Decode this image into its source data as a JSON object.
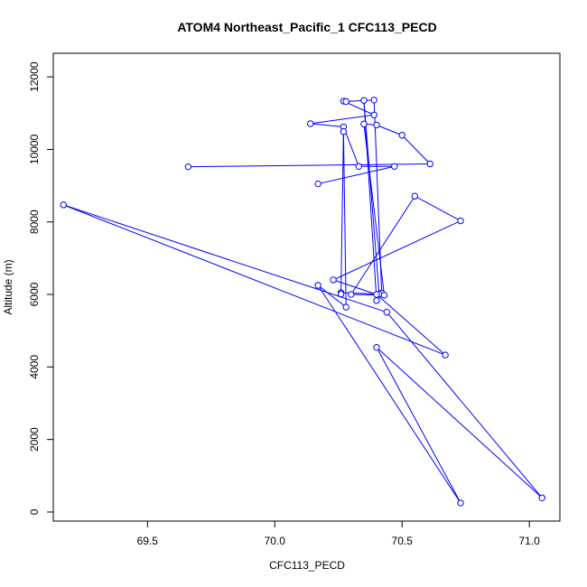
{
  "chart_data": {
    "type": "line",
    "title": "ATOM4 Northeast_Pacific_1 CFC113_PECD",
    "xlabel": "CFC113_PECD",
    "ylabel": "Altitude (m)",
    "xlim": [
      69.13,
      71.12
    ],
    "ylim": [
      -250,
      12650
    ],
    "xticks": [
      69.5,
      70.0,
      70.5,
      71.0
    ],
    "xtick_labels": [
      "69.5",
      "70.0",
      "70.5",
      "71.0"
    ],
    "yticks": [
      0,
      2000,
      4000,
      6000,
      8000,
      10000,
      12000
    ],
    "ytick_labels": [
      "0",
      "2000",
      "4000",
      "6000",
      "8000",
      "10000",
      "12000"
    ],
    "grid": false,
    "series": [
      {
        "color": "#0000ff",
        "marker": "open-circle",
        "points": [
          {
            "x": 70.17,
            "y": 9050
          },
          {
            "x": 70.47,
            "y": 9530
          },
          {
            "x": 70.33,
            "y": 9530
          },
          {
            "x": 70.27,
            "y": 10620
          },
          {
            "x": 70.14,
            "y": 10710
          },
          {
            "x": 70.39,
            "y": 10950
          },
          {
            "x": 70.27,
            "y": 11330
          },
          {
            "x": 70.28,
            "y": 11320
          },
          {
            "x": 70.39,
            "y": 11360
          },
          {
            "x": 70.42,
            "y": 6040
          },
          {
            "x": 70.4,
            "y": 5830
          },
          {
            "x": 70.35,
            "y": 11350
          },
          {
            "x": 70.41,
            "y": 6010
          },
          {
            "x": 70.26,
            "y": 6050
          },
          {
            "x": 70.26,
            "y": 6010
          },
          {
            "x": 70.27,
            "y": 10490
          },
          {
            "x": 70.28,
            "y": 5650
          },
          {
            "x": 70.17,
            "y": 6250
          },
          {
            "x": 70.73,
            "y": 250
          },
          {
            "x": 70.4,
            "y": 4540
          },
          {
            "x": 71.05,
            "y": 390
          },
          {
            "x": 70.44,
            "y": 5510
          },
          {
            "x": 69.17,
            "y": 8470
          },
          {
            "x": 70.67,
            "y": 4330
          },
          {
            "x": 70.4,
            "y": 6000
          },
          {
            "x": 70.23,
            "y": 6400
          },
          {
            "x": 70.73,
            "y": 8030
          },
          {
            "x": 70.55,
            "y": 8710
          },
          {
            "x": 70.3,
            "y": 6000
          },
          {
            "x": 70.43,
            "y": 5980
          },
          {
            "x": 70.35,
            "y": 10700
          },
          {
            "x": 70.4,
            "y": 10670
          },
          {
            "x": 70.5,
            "y": 10390
          },
          {
            "x": 70.61,
            "y": 9600
          },
          {
            "x": 69.66,
            "y": 9520
          }
        ]
      }
    ]
  }
}
